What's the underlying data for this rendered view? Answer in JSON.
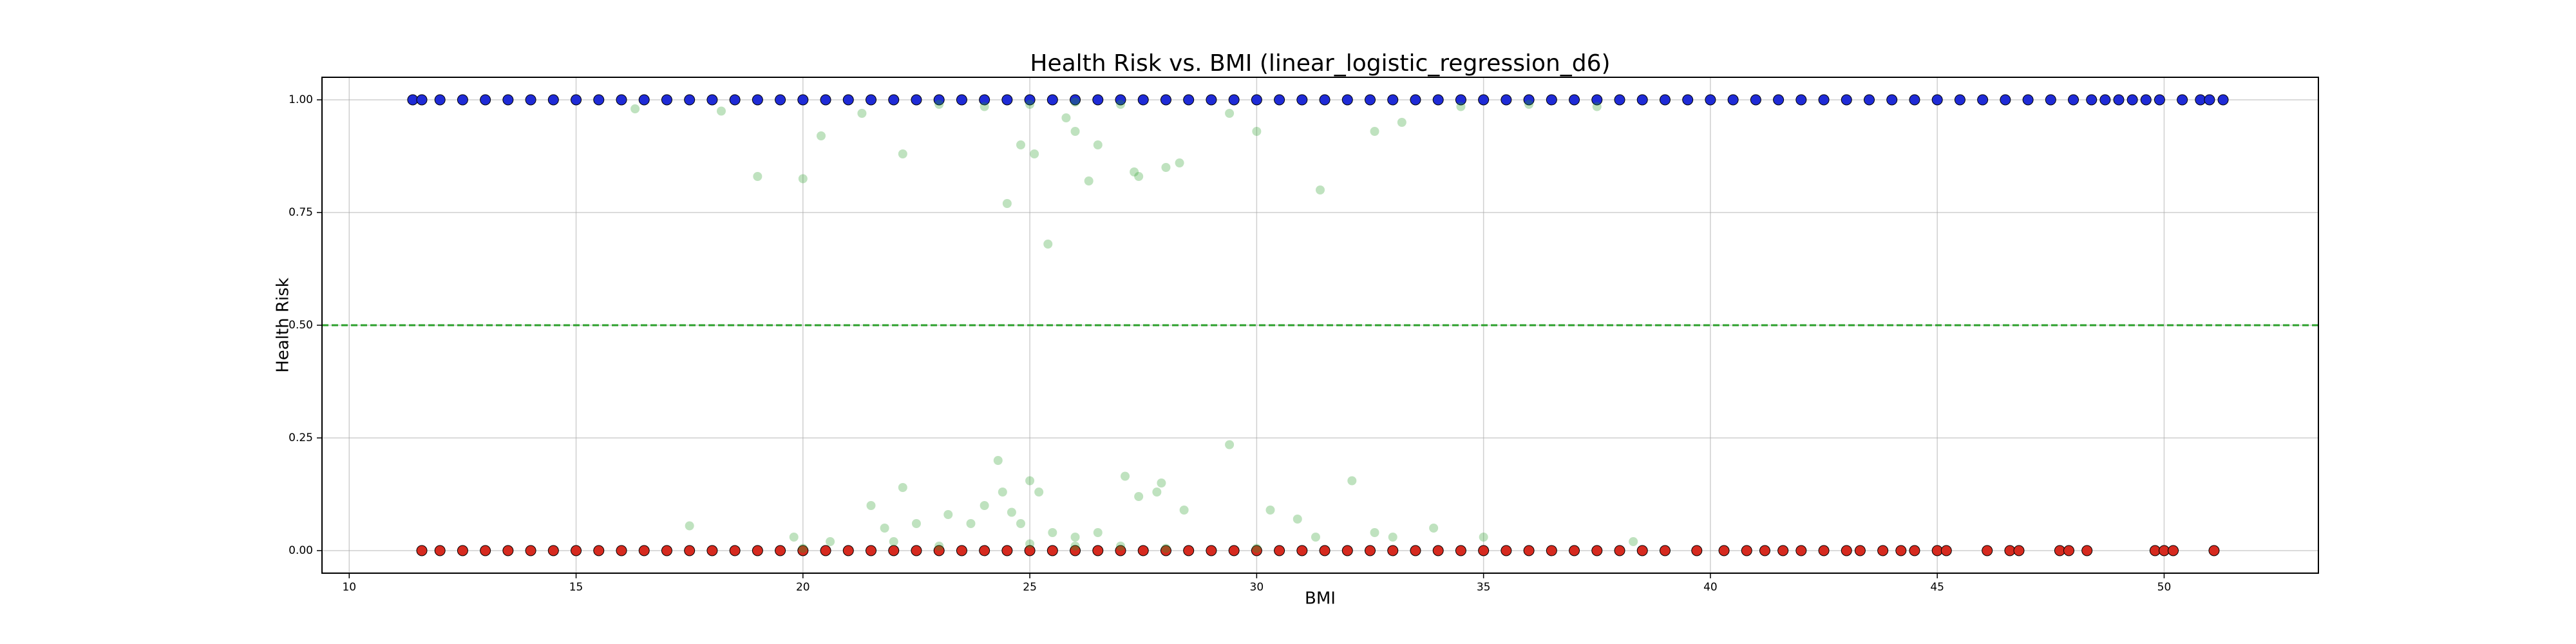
{
  "chart_data": {
    "type": "scatter",
    "title": "Health Risk vs. BMI (linear_logistic_regression_d6)",
    "x_label": "BMI",
    "y_label": "Health Risk",
    "xlim": [
      9.4,
      53.4
    ],
    "ylim": [
      -0.05,
      1.05
    ],
    "xticks": [
      10,
      15,
      20,
      25,
      30,
      35,
      40,
      45,
      50
    ],
    "yticks": [
      {
        "value": 0,
        "label": "0.00"
      },
      {
        "value": 0.25,
        "label": "0.25"
      },
      {
        "value": 0.5,
        "label": "0.50"
      },
      {
        "value": 0.75,
        "label": "0.75"
      },
      {
        "value": 1,
        "label": "1.00"
      }
    ],
    "grid": true,
    "hline": {
      "value": 0.5,
      "color": "#2ca02c"
    },
    "series": [
      {
        "color": "#1f2bd6",
        "opacity": 1,
        "x": [
          11.4,
          11.6,
          12,
          12.5,
          13,
          13.5,
          14,
          14.5,
          15,
          15.5,
          16,
          16.5,
          17,
          17.5,
          18,
          18.5,
          19,
          19.5,
          20,
          20.5,
          21,
          21.5,
          22,
          22.5,
          23,
          23.5,
          24,
          24.5,
          25,
          25.5,
          26,
          26.5,
          27,
          27.5,
          28,
          28.5,
          29,
          29.5,
          30,
          30.5,
          31,
          31.5,
          32,
          32.5,
          33,
          33.5,
          34,
          34.5,
          35,
          35.5,
          36,
          36.5,
          37,
          37.5,
          38,
          38.5,
          39,
          39.5,
          40,
          40.5,
          41,
          41.5,
          42,
          42.5,
          43,
          43.5,
          44,
          44.5,
          45,
          45.5,
          46,
          46.5,
          47,
          47.5,
          48,
          48.4,
          48.7,
          49,
          49.3,
          49.6,
          49.9,
          50.4,
          50.8,
          51,
          51.3
        ],
        "values": [
          1,
          1,
          1,
          1,
          1,
          1,
          1,
          1,
          1,
          1,
          1,
          1,
          1,
          1,
          1,
          1,
          1,
          1,
          1,
          1,
          1,
          1,
          1,
          1,
          1,
          1,
          1,
          1,
          1,
          1,
          1,
          1,
          1,
          1,
          1,
          1,
          1,
          1,
          1,
          1,
          1,
          1,
          1,
          1,
          1,
          1,
          1,
          1,
          1,
          1,
          1,
          1,
          1,
          1,
          1,
          1,
          1,
          1,
          1,
          1,
          1,
          1,
          1,
          1,
          1,
          1,
          1,
          1,
          1,
          1,
          1,
          1,
          1,
          1,
          1,
          1,
          1,
          1,
          1,
          1,
          1,
          1,
          1,
          1,
          1
        ]
      },
      {
        "color": "#d62a1f",
        "opacity": 1,
        "x": [
          11.6,
          12,
          12.5,
          13,
          13.5,
          14,
          14.5,
          15,
          15.5,
          16,
          16.5,
          17,
          17.5,
          18,
          18.5,
          19,
          19.5,
          20,
          20.5,
          21,
          21.5,
          22,
          22.5,
          23,
          23.5,
          24,
          24.5,
          25,
          25.5,
          26,
          26.5,
          27,
          27.5,
          28,
          28.5,
          29,
          29.5,
          30,
          30.5,
          31,
          31.5,
          32,
          32.5,
          33,
          33.5,
          34,
          34.5,
          35,
          35.5,
          36,
          36.5,
          37,
          37.5,
          38,
          38.5,
          39,
          39.7,
          40.3,
          40.8,
          41.2,
          41.6,
          42,
          42.5,
          43,
          43.3,
          43.8,
          44.2,
          44.5,
          45,
          45.2,
          46.1,
          46.6,
          46.8,
          47.7,
          47.9,
          48.3,
          49.8,
          50,
          50.2,
          51.1
        ],
        "values": [
          0,
          0,
          0,
          0,
          0,
          0,
          0,
          0,
          0,
          0,
          0,
          0,
          0,
          0,
          0,
          0,
          0,
          0,
          0,
          0,
          0,
          0,
          0,
          0,
          0,
          0,
          0,
          0,
          0,
          0,
          0,
          0,
          0,
          0,
          0,
          0,
          0,
          0,
          0,
          0,
          0,
          0,
          0,
          0,
          0,
          0,
          0,
          0,
          0,
          0,
          0,
          0,
          0,
          0,
          0,
          0,
          0,
          0,
          0,
          0,
          0,
          0,
          0,
          0,
          0,
          0,
          0,
          0,
          0,
          0,
          0,
          0,
          0,
          0,
          0,
          0,
          0,
          0,
          0,
          0
        ]
      },
      {
        "color": "#2ca02c",
        "opacity": 0.3,
        "x": [
          16.3,
          18.2,
          19.0,
          20.0,
          20.4,
          21.3,
          22.2,
          24.5,
          24.8,
          25.1,
          25.4,
          25.8,
          26.0,
          26.3,
          26.5,
          27.4,
          27.3,
          28.0,
          28.3,
          29.4,
          30.0,
          31.4,
          32.6,
          33.2,
          25.0,
          26.0,
          27.0,
          23.0,
          24.0,
          34.5,
          37.5,
          36.0,
          17.5,
          19.8,
          20.6,
          21.5,
          21.8,
          22.2,
          22.5,
          23.2,
          23.7,
          24.0,
          24.3,
          24.4,
          24.6,
          24.8,
          25.0,
          25.2,
          25.5,
          26.0,
          26.5,
          27.1,
          27.4,
          27.8,
          27.9,
          28.4,
          29.4,
          30.3,
          30.9,
          31.3,
          32.1,
          32.6,
          33.0,
          33.9,
          35.0,
          38.3,
          23.0,
          25.0,
          27.0,
          20.0,
          22.0,
          26.0,
          28.0,
          30.0
        ],
        "values": [
          0.98,
          0.975,
          0.83,
          0.825,
          0.92,
          0.97,
          0.88,
          0.77,
          0.9,
          0.88,
          0.68,
          0.96,
          0.93,
          0.82,
          0.9,
          0.83,
          0.84,
          0.85,
          0.86,
          0.97,
          0.93,
          0.8,
          0.93,
          0.95,
          0.99,
          0.995,
          0.99,
          0.99,
          0.985,
          0.985,
          0.985,
          0.99,
          0.055,
          0.03,
          0.02,
          0.1,
          0.05,
          0.14,
          0.06,
          0.08,
          0.06,
          0.1,
          0.2,
          0.13,
          0.085,
          0.06,
          0.155,
          0.13,
          0.04,
          0.03,
          0.04,
          0.165,
          0.12,
          0.13,
          0.15,
          0.09,
          0.235,
          0.09,
          0.07,
          0.03,
          0.155,
          0.04,
          0.03,
          0.05,
          0.03,
          0.02,
          0.01,
          0.015,
          0.01,
          0.005,
          0.02,
          0.01,
          0.005,
          0.005
        ]
      }
    ]
  }
}
